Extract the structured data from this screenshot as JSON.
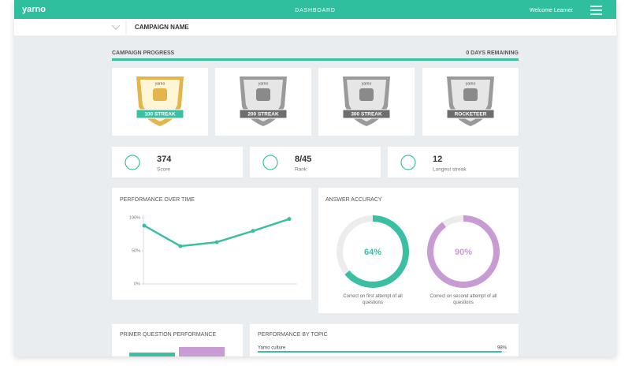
{
  "header": {
    "logo": "yarno",
    "title": "DASHBOARD",
    "user": "Welcome Learner"
  },
  "subheader": {
    "campaign": "CAMPAIGN NAME"
  },
  "progress": {
    "title": "CAMPAIGN PROGRESS",
    "remaining": "0 DAYS REMAINING"
  },
  "badges": [
    {
      "brand": "yarno",
      "label": "100 STREAK"
    },
    {
      "brand": "yarno",
      "label": "200 STREAK"
    },
    {
      "brand": "yarno",
      "label": "300 STREAK"
    },
    {
      "brand": "yarno",
      "label": "ROCKETEER"
    }
  ],
  "stats": [
    {
      "value": 374,
      "label": "Score"
    },
    {
      "value": "8/45",
      "label": "Rank"
    },
    {
      "value": 12,
      "label": "Longest streak"
    }
  ],
  "chart_data": [
    {
      "type": "line",
      "title": "PERFORMANCE OVER TIME",
      "values": [
        88,
        57,
        63,
        80,
        98
      ],
      "color": "#3bbfa3",
      "ylim": [
        0,
        100
      ],
      "yticks": [
        {
          "value": 0,
          "label": "0%"
        },
        {
          "value": 50,
          "label": "50%"
        },
        {
          "value": 100,
          "label": "100%"
        }
      ]
    },
    {
      "type": "donut",
      "title": "ANSWER ACCURACY",
      "categories": [
        "Correct on first attempt of all questions",
        "Correct on second attempt of all questions"
      ],
      "values": [
        64,
        90
      ],
      "value_labels": [
        "64%",
        "90%"
      ],
      "colors": [
        "#3bbfa3",
        "#c99bd4"
      ]
    },
    {
      "type": "hbar",
      "title": "PERFORMANCE BY TOPIC",
      "categories": [
        "Yarno culture"
      ],
      "values": [
        98
      ],
      "value_labels": [
        "98%"
      ],
      "xlim": [
        0,
        100
      ],
      "color": "#3bbfa3"
    }
  ],
  "primer": {
    "title": "PRIMER QUESTION PERFORMANCE"
  }
}
